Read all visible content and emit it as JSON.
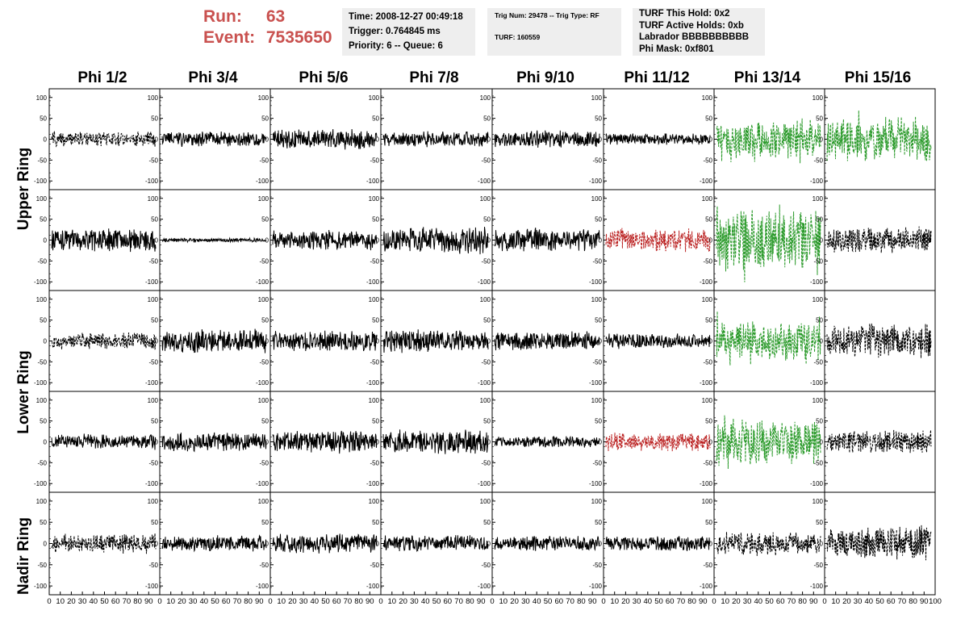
{
  "header": {
    "run_label": "Run:",
    "run_value": "63",
    "event_label": "Event:",
    "event_value": "7535650",
    "info_box_1": [
      "Time: 2008-12-27 00:49:18",
      "Trigger: 0.764845 ms",
      "Priority: 6 -- Queue: 6"
    ],
    "info_box_2": [
      "Trig Num: 29478 -- Trig Type: RF",
      "TURF: 160559"
    ],
    "info_box_3": [
      "TURF This Hold: 0x2",
      "TURF Active Holds: 0xb",
      "Labrador BBBBBBBBBB",
      "Phi Mask: 0xf801"
    ]
  },
  "colors": {
    "header_red": "#c9514f",
    "info_box_bg": "#eeeeee",
    "trace_black": "#000000",
    "trace_red": "#bb2222",
    "trace_green": "#2a9a2a"
  },
  "chart_data": {
    "type": "line",
    "phi_labels": [
      "Phi 1/2",
      "Phi 3/4",
      "Phi 5/6",
      "Phi 7/8",
      "Phi 9/10",
      "Phi 11/12",
      "Phi 13/14",
      "Phi 15/16"
    ],
    "ring_labels": [
      "Upper Ring",
      "Lower Ring",
      "Nadir Ring"
    ],
    "ylim": [
      -115,
      115
    ],
    "xlim": [
      0,
      100
    ],
    "y_ticks": [
      -100,
      -50,
      0,
      50,
      100
    ],
    "y_tick_labels": [
      "-100",
      "-50",
      "0",
      "50",
      "100"
    ],
    "x_ticks": [
      0,
      10,
      20,
      30,
      40,
      50,
      60,
      70,
      80,
      90,
      100
    ],
    "x_tick_labels": [
      "0",
      "10",
      "20",
      "30",
      "40",
      "50",
      "60",
      "70",
      "80",
      "90",
      "100"
    ],
    "rows": [
      {
        "ring": "Upper Ring",
        "traces": [
          {
            "style": "dashed",
            "color": "black",
            "amplitude": 20
          },
          {
            "style": "solid",
            "color": "black",
            "amplitude": 20
          },
          {
            "style": "solid",
            "color": "black",
            "amplitude": 25
          },
          {
            "style": "solid",
            "color": "black",
            "amplitude": 20
          },
          {
            "style": "solid",
            "color": "black",
            "amplitude": 22
          },
          {
            "style": "solid",
            "color": "black",
            "amplitude": 15
          },
          {
            "style": "dashed",
            "color": "green",
            "amplitude": 50
          },
          {
            "style": "dashed",
            "color": "green",
            "amplitude": 55
          }
        ]
      },
      {
        "ring": "Upper Ring",
        "traces": [
          {
            "style": "solid",
            "color": "black",
            "amplitude": 30
          },
          {
            "style": "solid",
            "color": "black",
            "amplitude": 5
          },
          {
            "style": "solid",
            "color": "black",
            "amplitude": 25
          },
          {
            "style": "solid",
            "color": "black",
            "amplitude": 35
          },
          {
            "style": "solid",
            "color": "black",
            "amplitude": 30
          },
          {
            "style": "dashed",
            "color": "red",
            "amplitude": 30
          },
          {
            "style": "dashed",
            "color": "green",
            "amplitude": 80
          },
          {
            "style": "dashed",
            "color": "black",
            "amplitude": 35
          }
        ]
      },
      {
        "ring": "Lower Ring",
        "traces": [
          {
            "style": "dashed",
            "color": "black",
            "amplitude": 22
          },
          {
            "style": "solid",
            "color": "black",
            "amplitude": 30
          },
          {
            "style": "solid",
            "color": "black",
            "amplitude": 28
          },
          {
            "style": "solid",
            "color": "black",
            "amplitude": 30
          },
          {
            "style": "solid",
            "color": "black",
            "amplitude": 25
          },
          {
            "style": "solid",
            "color": "black",
            "amplitude": 20
          },
          {
            "style": "dashed",
            "color": "green",
            "amplitude": 50
          },
          {
            "style": "dashed",
            "color": "black",
            "amplitude": 45
          }
        ]
      },
      {
        "ring": "Lower Ring",
        "traces": [
          {
            "style": "solid",
            "color": "black",
            "amplitude": 20
          },
          {
            "style": "solid",
            "color": "black",
            "amplitude": 25
          },
          {
            "style": "solid",
            "color": "black",
            "amplitude": 30
          },
          {
            "style": "solid",
            "color": "black",
            "amplitude": 30
          },
          {
            "style": "solid",
            "color": "black",
            "amplitude": 15
          },
          {
            "style": "dashed",
            "color": "red",
            "amplitude": 25
          },
          {
            "style": "dashed",
            "color": "green",
            "amplitude": 60
          },
          {
            "style": "dashed",
            "color": "black",
            "amplitude": 30
          }
        ]
      },
      {
        "ring": "Nadir Ring",
        "traces": [
          {
            "style": "dashed",
            "color": "black",
            "amplitude": 25
          },
          {
            "style": "solid",
            "color": "black",
            "amplitude": 20
          },
          {
            "style": "solid",
            "color": "black",
            "amplitude": 25
          },
          {
            "style": "solid",
            "color": "black",
            "amplitude": 20
          },
          {
            "style": "solid",
            "color": "black",
            "amplitude": 20
          },
          {
            "style": "solid",
            "color": "black",
            "amplitude": 20
          },
          {
            "style": "dashed",
            "color": "black",
            "amplitude": 30
          },
          {
            "style": "dashed",
            "color": "black",
            "amplitude": 45
          }
        ]
      }
    ]
  }
}
